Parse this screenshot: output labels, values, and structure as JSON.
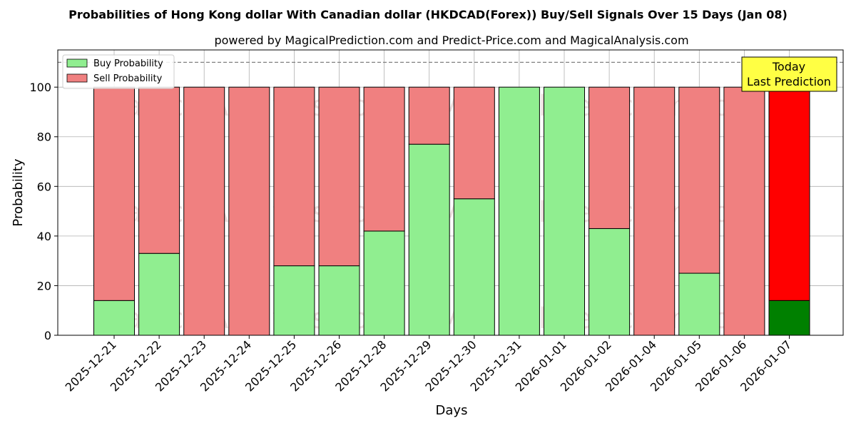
{
  "chart_data": {
    "type": "bar",
    "stacked": true,
    "title": "Probabilities of Hong Kong dollar With Canadian dollar (HKDCAD(Forex)) Buy/Sell Signals Over 15 Days (Jan 08)",
    "subtitle": "powered by MagicalPrediction.com and Predict-Price.com and MagicalAnalysis.com",
    "xlabel": "Days",
    "ylabel": "Probability",
    "ylim": [
      0,
      115
    ],
    "yticks": [
      0,
      20,
      40,
      60,
      80,
      100
    ],
    "grid": true,
    "legend_position": "top-left",
    "reference_line": 110,
    "categories": [
      "2025-12-21",
      "2025-12-22",
      "2025-12-23",
      "2025-12-24",
      "2025-12-25",
      "2025-12-26",
      "2025-12-28",
      "2025-12-29",
      "2025-12-30",
      "2025-12-31",
      "2026-01-01",
      "2026-01-02",
      "2026-01-04",
      "2026-01-05",
      "2026-01-06",
      "2026-01-07"
    ],
    "series": [
      {
        "name": "Buy Probability",
        "color": "#90EE90",
        "values": [
          14,
          33,
          0,
          0,
          28,
          28,
          42,
          77,
          55,
          100,
          100,
          43,
          0,
          25,
          0,
          14
        ]
      },
      {
        "name": "Sell Probability",
        "color": "#F08080",
        "values": [
          86,
          67,
          100,
          100,
          72,
          72,
          58,
          23,
          45,
          0,
          0,
          57,
          100,
          75,
          100,
          86
        ]
      }
    ],
    "highlight": {
      "index": 15,
      "buy_color": "#008000",
      "sell_color": "#FF0000"
    },
    "annotation": {
      "line1": "Today",
      "line2": "Last Prediction",
      "bg": "#FFFF44"
    },
    "watermarks": [
      "MagicalAnalysis.com",
      "MagicalPrediction.com"
    ]
  }
}
